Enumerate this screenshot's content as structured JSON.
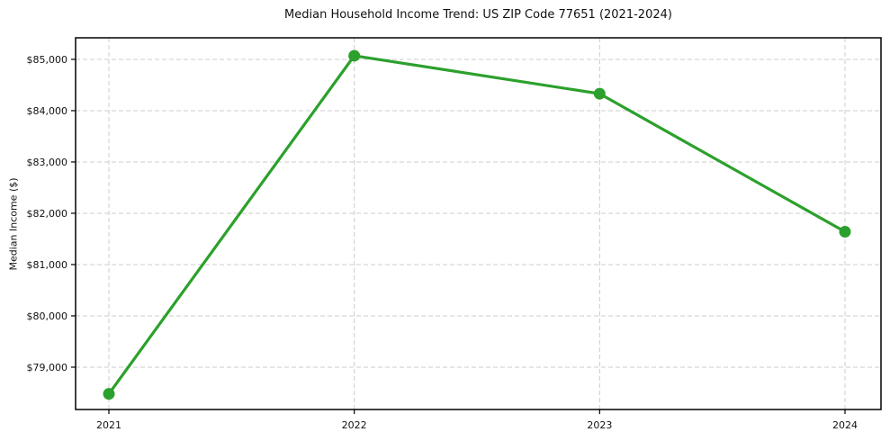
{
  "figure": {
    "title": "Median Household Income Trend: US ZIP Code 77651 (2021-2024)"
  },
  "chart_data": {
    "type": "line",
    "title": "Median Household Income Trend: US ZIP Code 77651 (2021-2024)",
    "xlabel": "",
    "ylabel": "Median Income ($)",
    "x_labels": [
      "2021",
      "2022",
      "2023",
      "2024"
    ],
    "x": [
      2021,
      2022,
      2023,
      2024
    ],
    "values": [
      78480,
      85070,
      84330,
      81640
    ],
    "yticks": [
      79000,
      80000,
      81000,
      82000,
      83000,
      84000,
      85000
    ],
    "ytick_labels": [
      "$79,000",
      "$80,000",
      "$81,000",
      "$82,000",
      "$83,000",
      "$84,000",
      "$85,000"
    ],
    "ylim": [
      78175,
      85420
    ],
    "grid": true,
    "grid_style": "dashed",
    "legend_position": "none",
    "line_color": "#2ca02c",
    "marker": "circle",
    "grid_color": "#cccccc",
    "spine_color": "#000000",
    "background_color": "#ffffff"
  }
}
